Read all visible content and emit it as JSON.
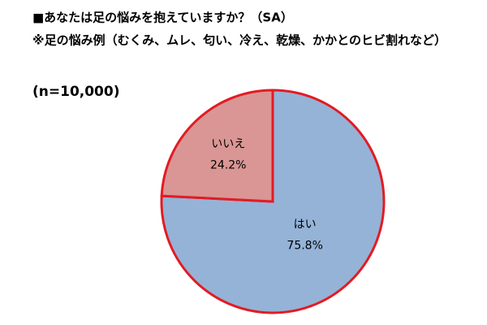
{
  "chart_data": {
    "type": "pie",
    "title": "■あなたは足の悩みを抱えていますか？（SA）",
    "subtitle": "※足の悩み例（むくみ、ムレ、匂い、冷え、乾燥、かかとのヒビ割れなど）",
    "annotation": "(n=10,000)",
    "categories": [
      "はい",
      "いいえ"
    ],
    "values": [
      75.8,
      24.2
    ],
    "value_labels": [
      "75.8%",
      "24.2%"
    ],
    "colors": [
      "#95b3d7",
      "#d99694"
    ],
    "edge_color": "#e31b23"
  }
}
